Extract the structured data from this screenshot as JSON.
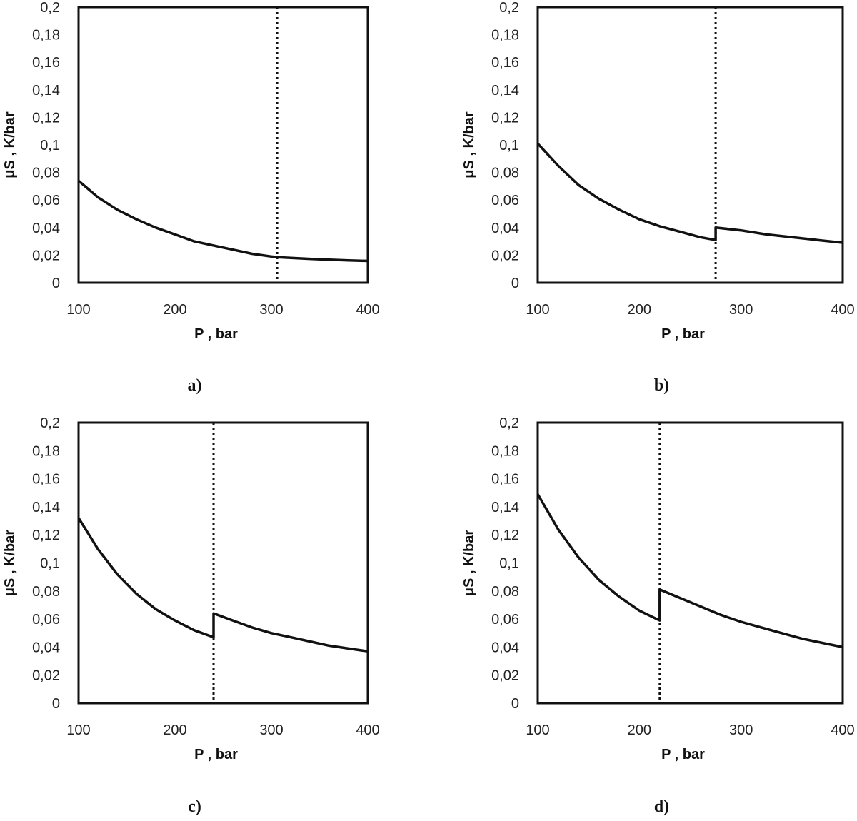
{
  "chart_data": [
    {
      "type": "line",
      "panel_label": "a)",
      "xlabel": "P , bar",
      "ylabel": "μS , K/bar",
      "xlim": [
        100,
        400
      ],
      "ylim": [
        0,
        0.2
      ],
      "x_ticks": [
        100,
        200,
        300,
        400
      ],
      "x_tick_labels": [
        "100",
        "200",
        "300",
        "400"
      ],
      "y_ticks": [
        0,
        0.02,
        0.04,
        0.06,
        0.08,
        0.1,
        0.12,
        0.14,
        0.16,
        0.18,
        0.2
      ],
      "y_tick_labels": [
        "0",
        "0,02",
        "0,04",
        "0,06",
        "0,08",
        "0,1",
        "0,12",
        "0,14",
        "0,16",
        "0,18",
        "0,2"
      ],
      "grid": false,
      "vline_x": 306,
      "series": [
        {
          "x": [
            100,
            120,
            140,
            160,
            180,
            200,
            220,
            240,
            260,
            280,
            300,
            306,
            320,
            340,
            360,
            380,
            400
          ],
          "values": [
            0.074,
            0.062,
            0.053,
            0.046,
            0.04,
            0.035,
            0.03,
            0.027,
            0.024,
            0.021,
            0.019,
            0.0185,
            0.018,
            0.0173,
            0.0167,
            0.0162,
            0.0158
          ]
        }
      ]
    },
    {
      "type": "line",
      "panel_label": "b)",
      "xlabel": "P , bar",
      "ylabel": "μS , K/bar",
      "xlim": [
        100,
        400
      ],
      "ylim": [
        0,
        0.2
      ],
      "x_ticks": [
        100,
        200,
        300,
        400
      ],
      "x_tick_labels": [
        "100",
        "200",
        "300",
        "400"
      ],
      "y_ticks": [
        0,
        0.02,
        0.04,
        0.06,
        0.08,
        0.1,
        0.12,
        0.14,
        0.16,
        0.18,
        0.2
      ],
      "y_tick_labels": [
        "0",
        "0,02",
        "0,04",
        "0,06",
        "0,08",
        "0,1",
        "0,12",
        "0,14",
        "0,16",
        "0,18",
        "0,2"
      ],
      "grid": false,
      "vline_x": 275,
      "series": [
        {
          "x": [
            100,
            120,
            140,
            160,
            180,
            200,
            220,
            240,
            260,
            275,
            275,
            300,
            325,
            350,
            375,
            400
          ],
          "values": [
            0.101,
            0.085,
            0.071,
            0.061,
            0.053,
            0.046,
            0.041,
            0.037,
            0.033,
            0.031,
            0.04,
            0.038,
            0.035,
            0.033,
            0.031,
            0.029
          ]
        }
      ]
    },
    {
      "type": "line",
      "panel_label": "c)",
      "xlabel": "P , bar",
      "ylabel": "μS , K/bar",
      "xlim": [
        100,
        400
      ],
      "ylim": [
        0,
        0.2
      ],
      "x_ticks": [
        100,
        200,
        300,
        400
      ],
      "x_tick_labels": [
        "100",
        "200",
        "300",
        "400"
      ],
      "y_ticks": [
        0,
        0.02,
        0.04,
        0.06,
        0.08,
        0.1,
        0.12,
        0.14,
        0.16,
        0.18,
        0.2
      ],
      "y_tick_labels": [
        "0",
        "0,02",
        "0,04",
        "0,06",
        "0,08",
        "0,1",
        "0,12",
        "0,14",
        "0,16",
        "0,18",
        "0,2"
      ],
      "grid": false,
      "vline_x": 240,
      "series": [
        {
          "x": [
            100,
            120,
            140,
            160,
            180,
            200,
            220,
            240,
            240,
            260,
            280,
            300,
            320,
            340,
            360,
            380,
            400
          ],
          "values": [
            0.132,
            0.11,
            0.092,
            0.078,
            0.067,
            0.059,
            0.052,
            0.047,
            0.064,
            0.059,
            0.054,
            0.05,
            0.047,
            0.044,
            0.041,
            0.039,
            0.037
          ]
        }
      ]
    },
    {
      "type": "line",
      "panel_label": "d)",
      "xlabel": "P , bar",
      "ylabel": "μS , K/bar",
      "xlim": [
        100,
        400
      ],
      "ylim": [
        0,
        0.2
      ],
      "x_ticks": [
        100,
        200,
        300,
        400
      ],
      "x_tick_labels": [
        "100",
        "200",
        "300",
        "400"
      ],
      "y_ticks": [
        0,
        0.02,
        0.04,
        0.06,
        0.08,
        0.1,
        0.12,
        0.14,
        0.16,
        0.18,
        0.2
      ],
      "y_tick_labels": [
        "0",
        "0,02",
        "0,04",
        "0,06",
        "0,08",
        "0,1",
        "0,12",
        "0,14",
        "0,16",
        "0,18",
        "0,2"
      ],
      "grid": false,
      "vline_x": 220,
      "series": [
        {
          "x": [
            100,
            120,
            140,
            160,
            180,
            200,
            220,
            220,
            240,
            260,
            280,
            300,
            320,
            340,
            360,
            380,
            400
          ],
          "values": [
            0.149,
            0.124,
            0.104,
            0.088,
            0.076,
            0.066,
            0.059,
            0.081,
            0.075,
            0.069,
            0.063,
            0.058,
            0.054,
            0.05,
            0.046,
            0.043,
            0.04
          ]
        }
      ]
    }
  ]
}
